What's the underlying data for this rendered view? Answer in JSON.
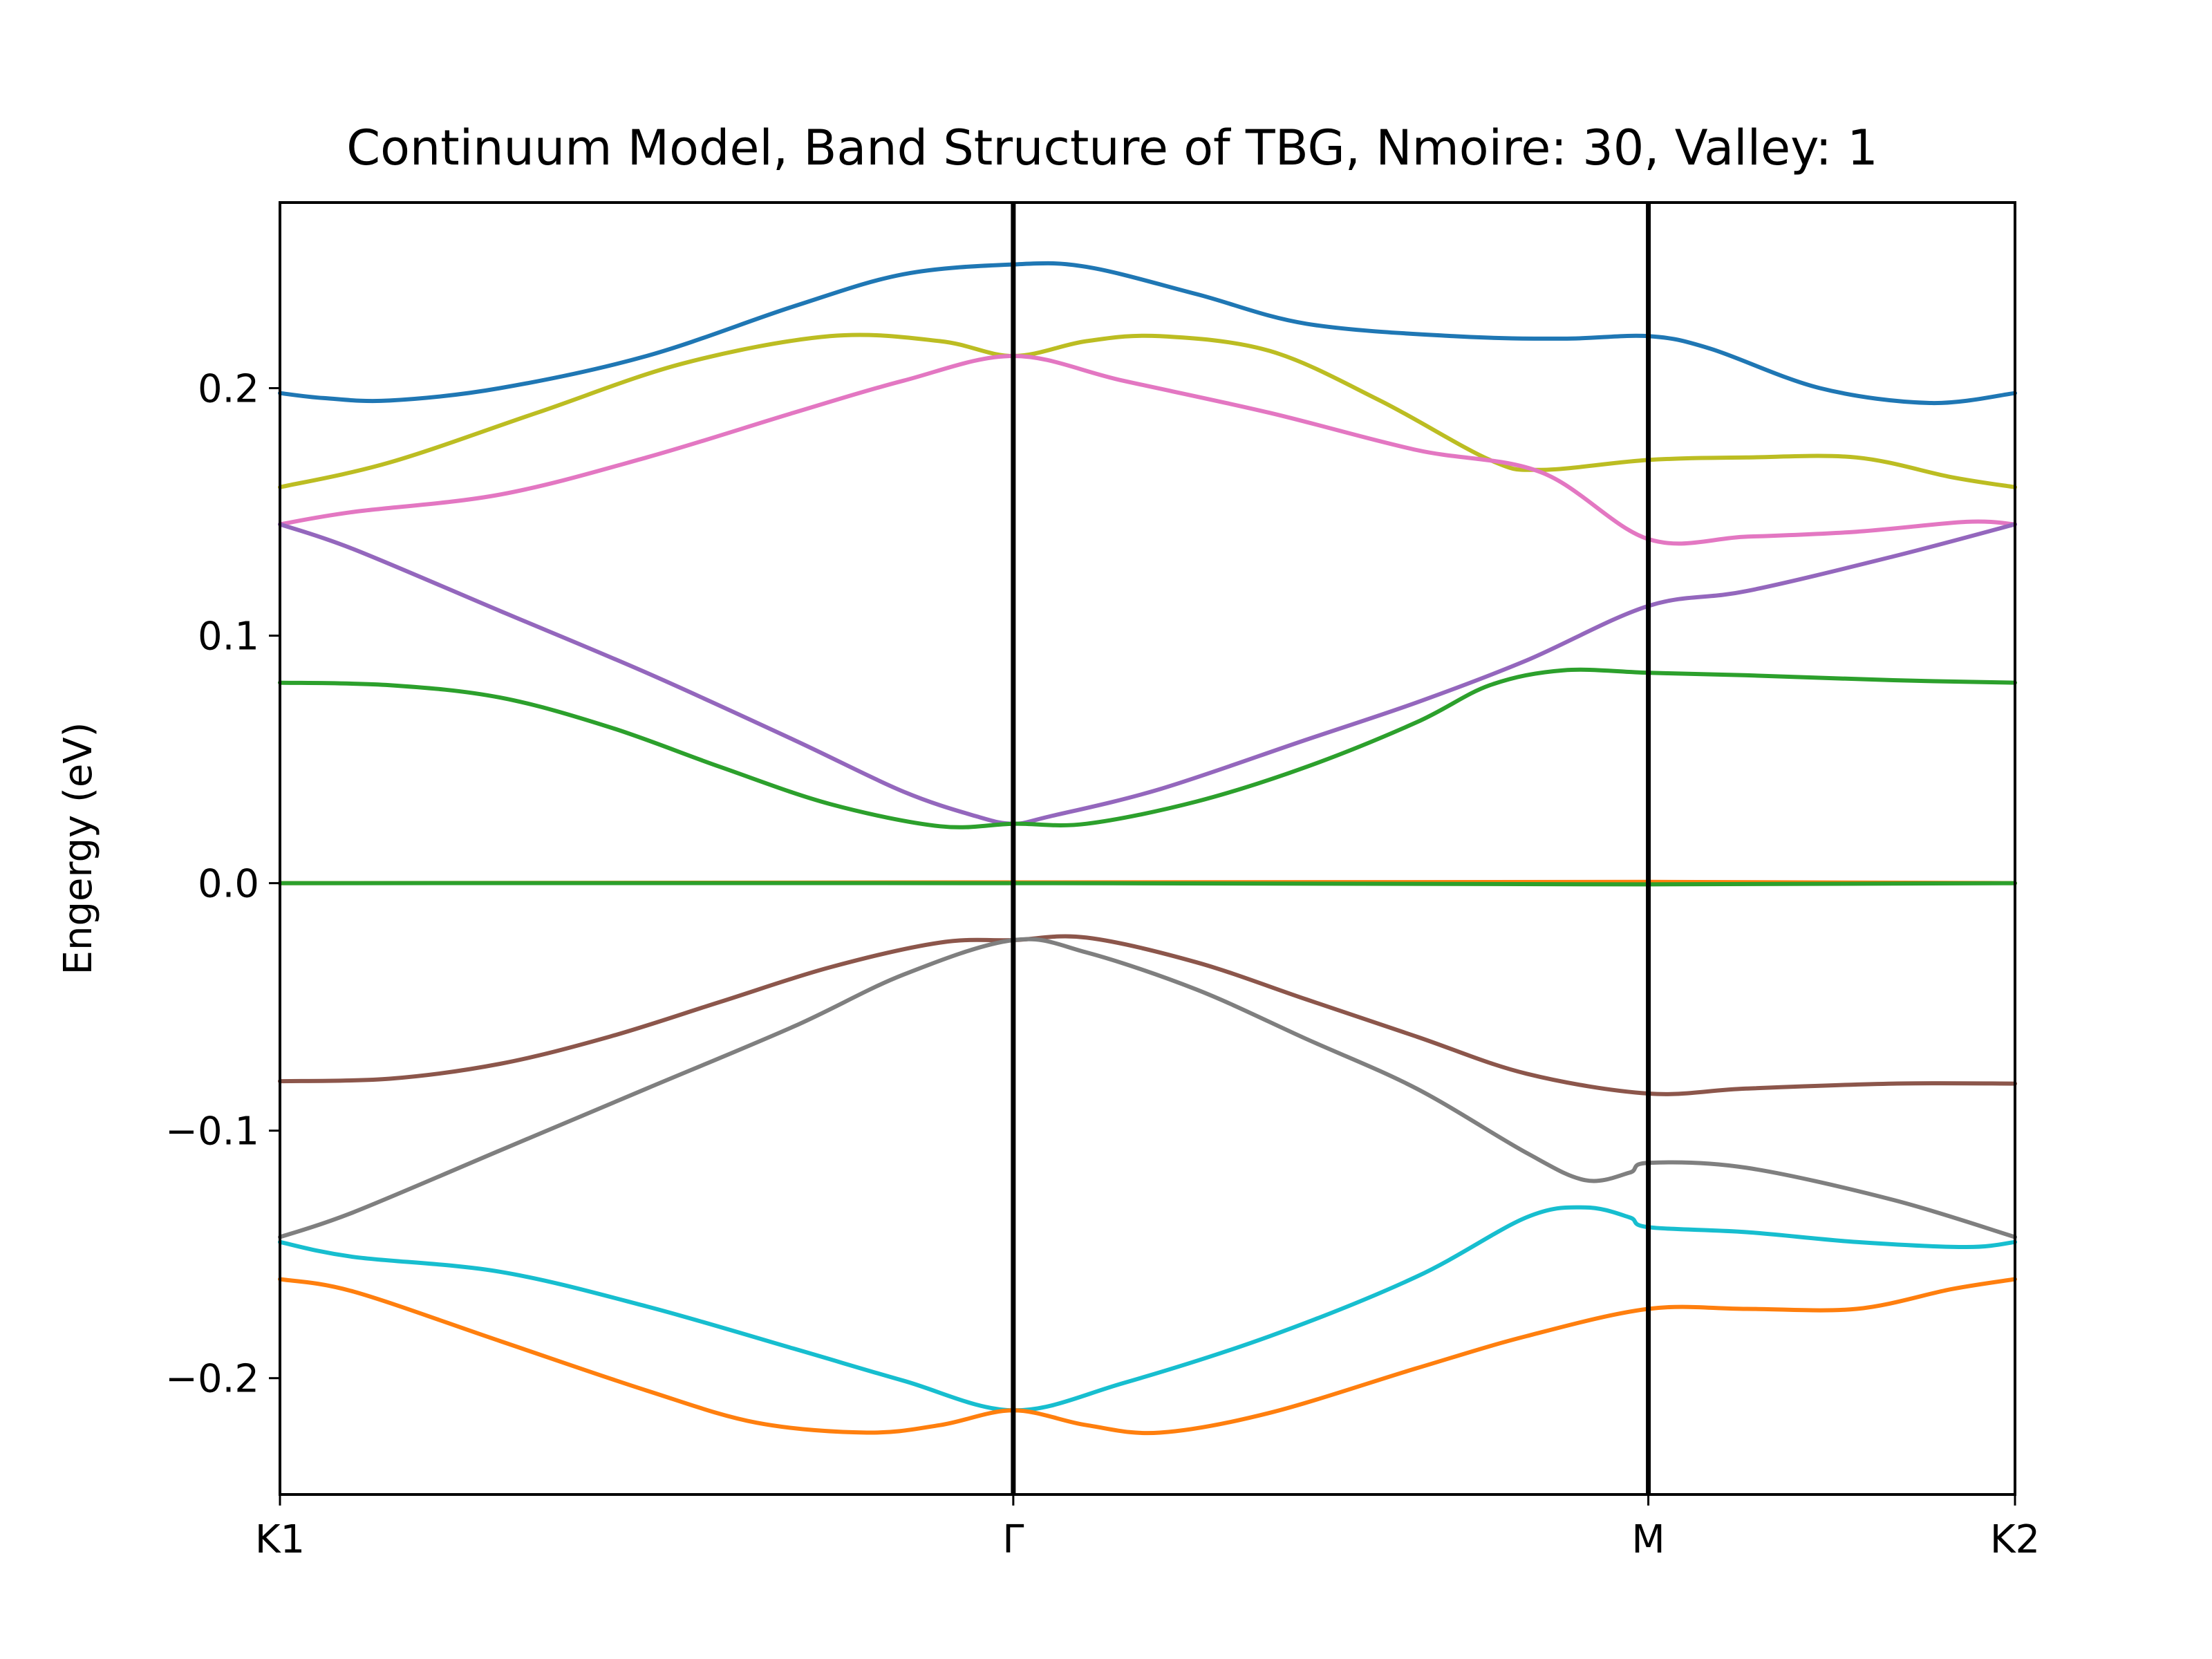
{
  "chart_data": {
    "type": "line",
    "title": "Continuum Model, Band Structure of TBG, Nmoire: 30, Valley: 1",
    "xlabel": "",
    "ylabel": "Engergy (eV)",
    "xlim": [
      0,
      2.366
    ],
    "ylim": [
      -0.247,
      0.275
    ],
    "grid": false,
    "legend": "none",
    "x_ticks": [
      {
        "label": "K1",
        "value": 0
      },
      {
        "label": "Γ",
        "value": 1.0
      },
      {
        "label": "M",
        "value": 1.866
      },
      {
        "label": "K2",
        "value": 2.366
      }
    ],
    "vertical_lines": [
      1.0,
      1.866
    ],
    "y_ticks": [
      {
        "label": "0.2",
        "value": 0.2
      },
      {
        "label": "0.1",
        "value": 0.1
      },
      {
        "label": "0.0",
        "value": 0.0
      },
      {
        "label": "−0.1",
        "value": -0.1
      },
      {
        "label": "−0.2",
        "value": -0.2
      }
    ],
    "series": [
      {
        "color": "#1f77b4",
        "points": [
          [
            0,
            0.198
          ],
          [
            0.06,
            0.196
          ],
          [
            0.15,
            0.195
          ],
          [
            0.3,
            0.2
          ],
          [
            0.5,
            0.213
          ],
          [
            0.7,
            0.233
          ],
          [
            0.85,
            0.246
          ],
          [
            1.0,
            0.25
          ],
          [
            1.1,
            0.249
          ],
          [
            1.25,
            0.238
          ],
          [
            1.4,
            0.226
          ],
          [
            1.6,
            0.221
          ],
          [
            1.75,
            0.22
          ],
          [
            1.866,
            0.221
          ],
          [
            1.95,
            0.216
          ],
          [
            2.1,
            0.2
          ],
          [
            2.25,
            0.194
          ],
          [
            2.366,
            0.198
          ]
        ]
      },
      {
        "color": "#bcbd22",
        "points": [
          [
            0,
            0.16
          ],
          [
            0.15,
            0.17
          ],
          [
            0.35,
            0.19
          ],
          [
            0.55,
            0.21
          ],
          [
            0.75,
            0.221
          ],
          [
            0.9,
            0.219
          ],
          [
            1.0,
            0.213
          ],
          [
            1.1,
            0.219
          ],
          [
            1.2,
            0.221
          ],
          [
            1.35,
            0.215
          ],
          [
            1.5,
            0.195
          ],
          [
            1.65,
            0.171
          ],
          [
            1.72,
            0.167
          ],
          [
            1.866,
            0.171
          ],
          [
            2.0,
            0.172
          ],
          [
            2.15,
            0.172
          ],
          [
            2.28,
            0.164
          ],
          [
            2.366,
            0.16
          ]
        ]
      },
      {
        "color": "#e377c2",
        "points": [
          [
            0,
            0.145
          ],
          [
            0.1,
            0.15
          ],
          [
            0.3,
            0.157
          ],
          [
            0.5,
            0.172
          ],
          [
            0.7,
            0.19
          ],
          [
            0.85,
            0.203
          ],
          [
            1.0,
            0.213
          ],
          [
            1.15,
            0.203
          ],
          [
            1.35,
            0.19
          ],
          [
            1.55,
            0.175
          ],
          [
            1.72,
            0.166
          ],
          [
            1.866,
            0.139
          ],
          [
            2.0,
            0.14
          ],
          [
            2.15,
            0.142
          ],
          [
            2.3,
            0.146
          ],
          [
            2.366,
            0.145
          ]
        ]
      },
      {
        "color": "#9467bd",
        "points": [
          [
            0,
            0.145
          ],
          [
            0.1,
            0.135
          ],
          [
            0.3,
            0.11
          ],
          [
            0.5,
            0.085
          ],
          [
            0.7,
            0.058
          ],
          [
            0.85,
            0.037
          ],
          [
            0.95,
            0.027
          ],
          [
            1.0,
            0.024
          ],
          [
            1.05,
            0.027
          ],
          [
            1.2,
            0.038
          ],
          [
            1.4,
            0.058
          ],
          [
            1.55,
            0.073
          ],
          [
            1.7,
            0.09
          ],
          [
            1.866,
            0.112
          ],
          [
            2.0,
            0.118
          ],
          [
            2.2,
            0.132
          ],
          [
            2.366,
            0.145
          ]
        ]
      },
      {
        "color": "#2ca02c",
        "points": [
          [
            0,
            0.081
          ],
          [
            0.15,
            0.08
          ],
          [
            0.3,
            0.075
          ],
          [
            0.45,
            0.063
          ],
          [
            0.6,
            0.047
          ],
          [
            0.75,
            0.032
          ],
          [
            0.9,
            0.023
          ],
          [
            1.0,
            0.024
          ],
          [
            1.1,
            0.024
          ],
          [
            1.25,
            0.033
          ],
          [
            1.4,
            0.047
          ],
          [
            1.55,
            0.065
          ],
          [
            1.65,
            0.08
          ],
          [
            1.75,
            0.086
          ],
          [
            1.866,
            0.085
          ],
          [
            2.0,
            0.084
          ],
          [
            2.2,
            0.082
          ],
          [
            2.366,
            0.081
          ]
        ]
      },
      {
        "color": "#ff7f0e",
        "points": [
          [
            0,
            0.0
          ],
          [
            1.866,
            0.0005
          ],
          [
            2.366,
            0.0
          ]
        ]
      },
      {
        "color": "#2ca02c",
        "points": [
          [
            0,
            0.0
          ],
          [
            1.0,
            0.0
          ],
          [
            1.866,
            -0.0005
          ],
          [
            2.366,
            0.0
          ]
        ]
      },
      {
        "color": "#8c564b",
        "points": [
          [
            0,
            -0.08
          ],
          [
            0.15,
            -0.079
          ],
          [
            0.3,
            -0.073
          ],
          [
            0.45,
            -0.062
          ],
          [
            0.6,
            -0.048
          ],
          [
            0.75,
            -0.034
          ],
          [
            0.9,
            -0.024
          ],
          [
            1.0,
            -0.023
          ],
          [
            1.1,
            -0.022
          ],
          [
            1.25,
            -0.032
          ],
          [
            1.4,
            -0.047
          ],
          [
            1.55,
            -0.062
          ],
          [
            1.7,
            -0.077
          ],
          [
            1.866,
            -0.085
          ],
          [
            2.0,
            -0.083
          ],
          [
            2.2,
            -0.081
          ],
          [
            2.366,
            -0.081
          ]
        ]
      },
      {
        "color": "#7f7f7f",
        "points": [
          [
            0,
            -0.143
          ],
          [
            0.1,
            -0.133
          ],
          [
            0.3,
            -0.108
          ],
          [
            0.5,
            -0.083
          ],
          [
            0.7,
            -0.058
          ],
          [
            0.85,
            -0.037
          ],
          [
            1.0,
            -0.023
          ],
          [
            1.1,
            -0.028
          ],
          [
            1.25,
            -0.043
          ],
          [
            1.4,
            -0.063
          ],
          [
            1.55,
            -0.083
          ],
          [
            1.7,
            -0.109
          ],
          [
            1.78,
            -0.12
          ],
          [
            1.84,
            -0.117
          ],
          [
            1.866,
            -0.113
          ],
          [
            2.0,
            -0.115
          ],
          [
            2.2,
            -0.128
          ],
          [
            2.366,
            -0.143
          ]
        ]
      },
      {
        "color": "#17becf",
        "points": [
          [
            0,
            -0.145
          ],
          [
            0.1,
            -0.151
          ],
          [
            0.3,
            -0.157
          ],
          [
            0.5,
            -0.171
          ],
          [
            0.7,
            -0.188
          ],
          [
            0.85,
            -0.201
          ],
          [
            1.0,
            -0.213
          ],
          [
            1.15,
            -0.202
          ],
          [
            1.35,
            -0.183
          ],
          [
            1.55,
            -0.159
          ],
          [
            1.7,
            -0.135
          ],
          [
            1.78,
            -0.131
          ],
          [
            1.84,
            -0.135
          ],
          [
            1.866,
            -0.139
          ],
          [
            2.0,
            -0.141
          ],
          [
            2.15,
            -0.145
          ],
          [
            2.3,
            -0.147
          ],
          [
            2.366,
            -0.145
          ]
        ]
      },
      {
        "color": "#ff7f0e",
        "points": [
          [
            0,
            -0.16
          ],
          [
            0.1,
            -0.165
          ],
          [
            0.3,
            -0.185
          ],
          [
            0.5,
            -0.205
          ],
          [
            0.65,
            -0.218
          ],
          [
            0.8,
            -0.222
          ],
          [
            0.9,
            -0.219
          ],
          [
            1.0,
            -0.213
          ],
          [
            1.1,
            -0.219
          ],
          [
            1.2,
            -0.222
          ],
          [
            1.35,
            -0.214
          ],
          [
            1.55,
            -0.196
          ],
          [
            1.7,
            -0.183
          ],
          [
            1.866,
            -0.172
          ],
          [
            2.0,
            -0.172
          ],
          [
            2.15,
            -0.172
          ],
          [
            2.28,
            -0.164
          ],
          [
            2.366,
            -0.16
          ]
        ]
      }
    ]
  }
}
